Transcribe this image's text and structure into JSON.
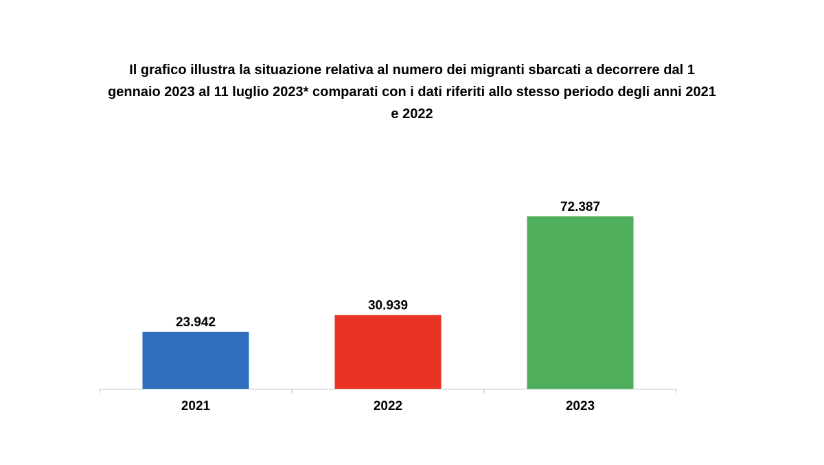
{
  "chart_data": {
    "type": "bar",
    "title": "Il grafico illustra la situazione relativa al numero dei migranti sbarcati a decorrere dal 1 gennaio 2023 al 11 luglio 2023* comparati con i dati riferiti allo stesso periodo degli anni 2021 e 2022",
    "categories": [
      "2021",
      "2022",
      "2023"
    ],
    "values": [
      23942,
      30939,
      72387
    ],
    "value_labels": [
      "23.942",
      "30.939",
      "72.387"
    ],
    "colors": [
      "#2E6EBD",
      "#E93323",
      "#4EAE5B"
    ],
    "ylim": [
      0,
      72387
    ],
    "grid": false,
    "legend": "none",
    "axis_color": "#BFBFBF"
  }
}
